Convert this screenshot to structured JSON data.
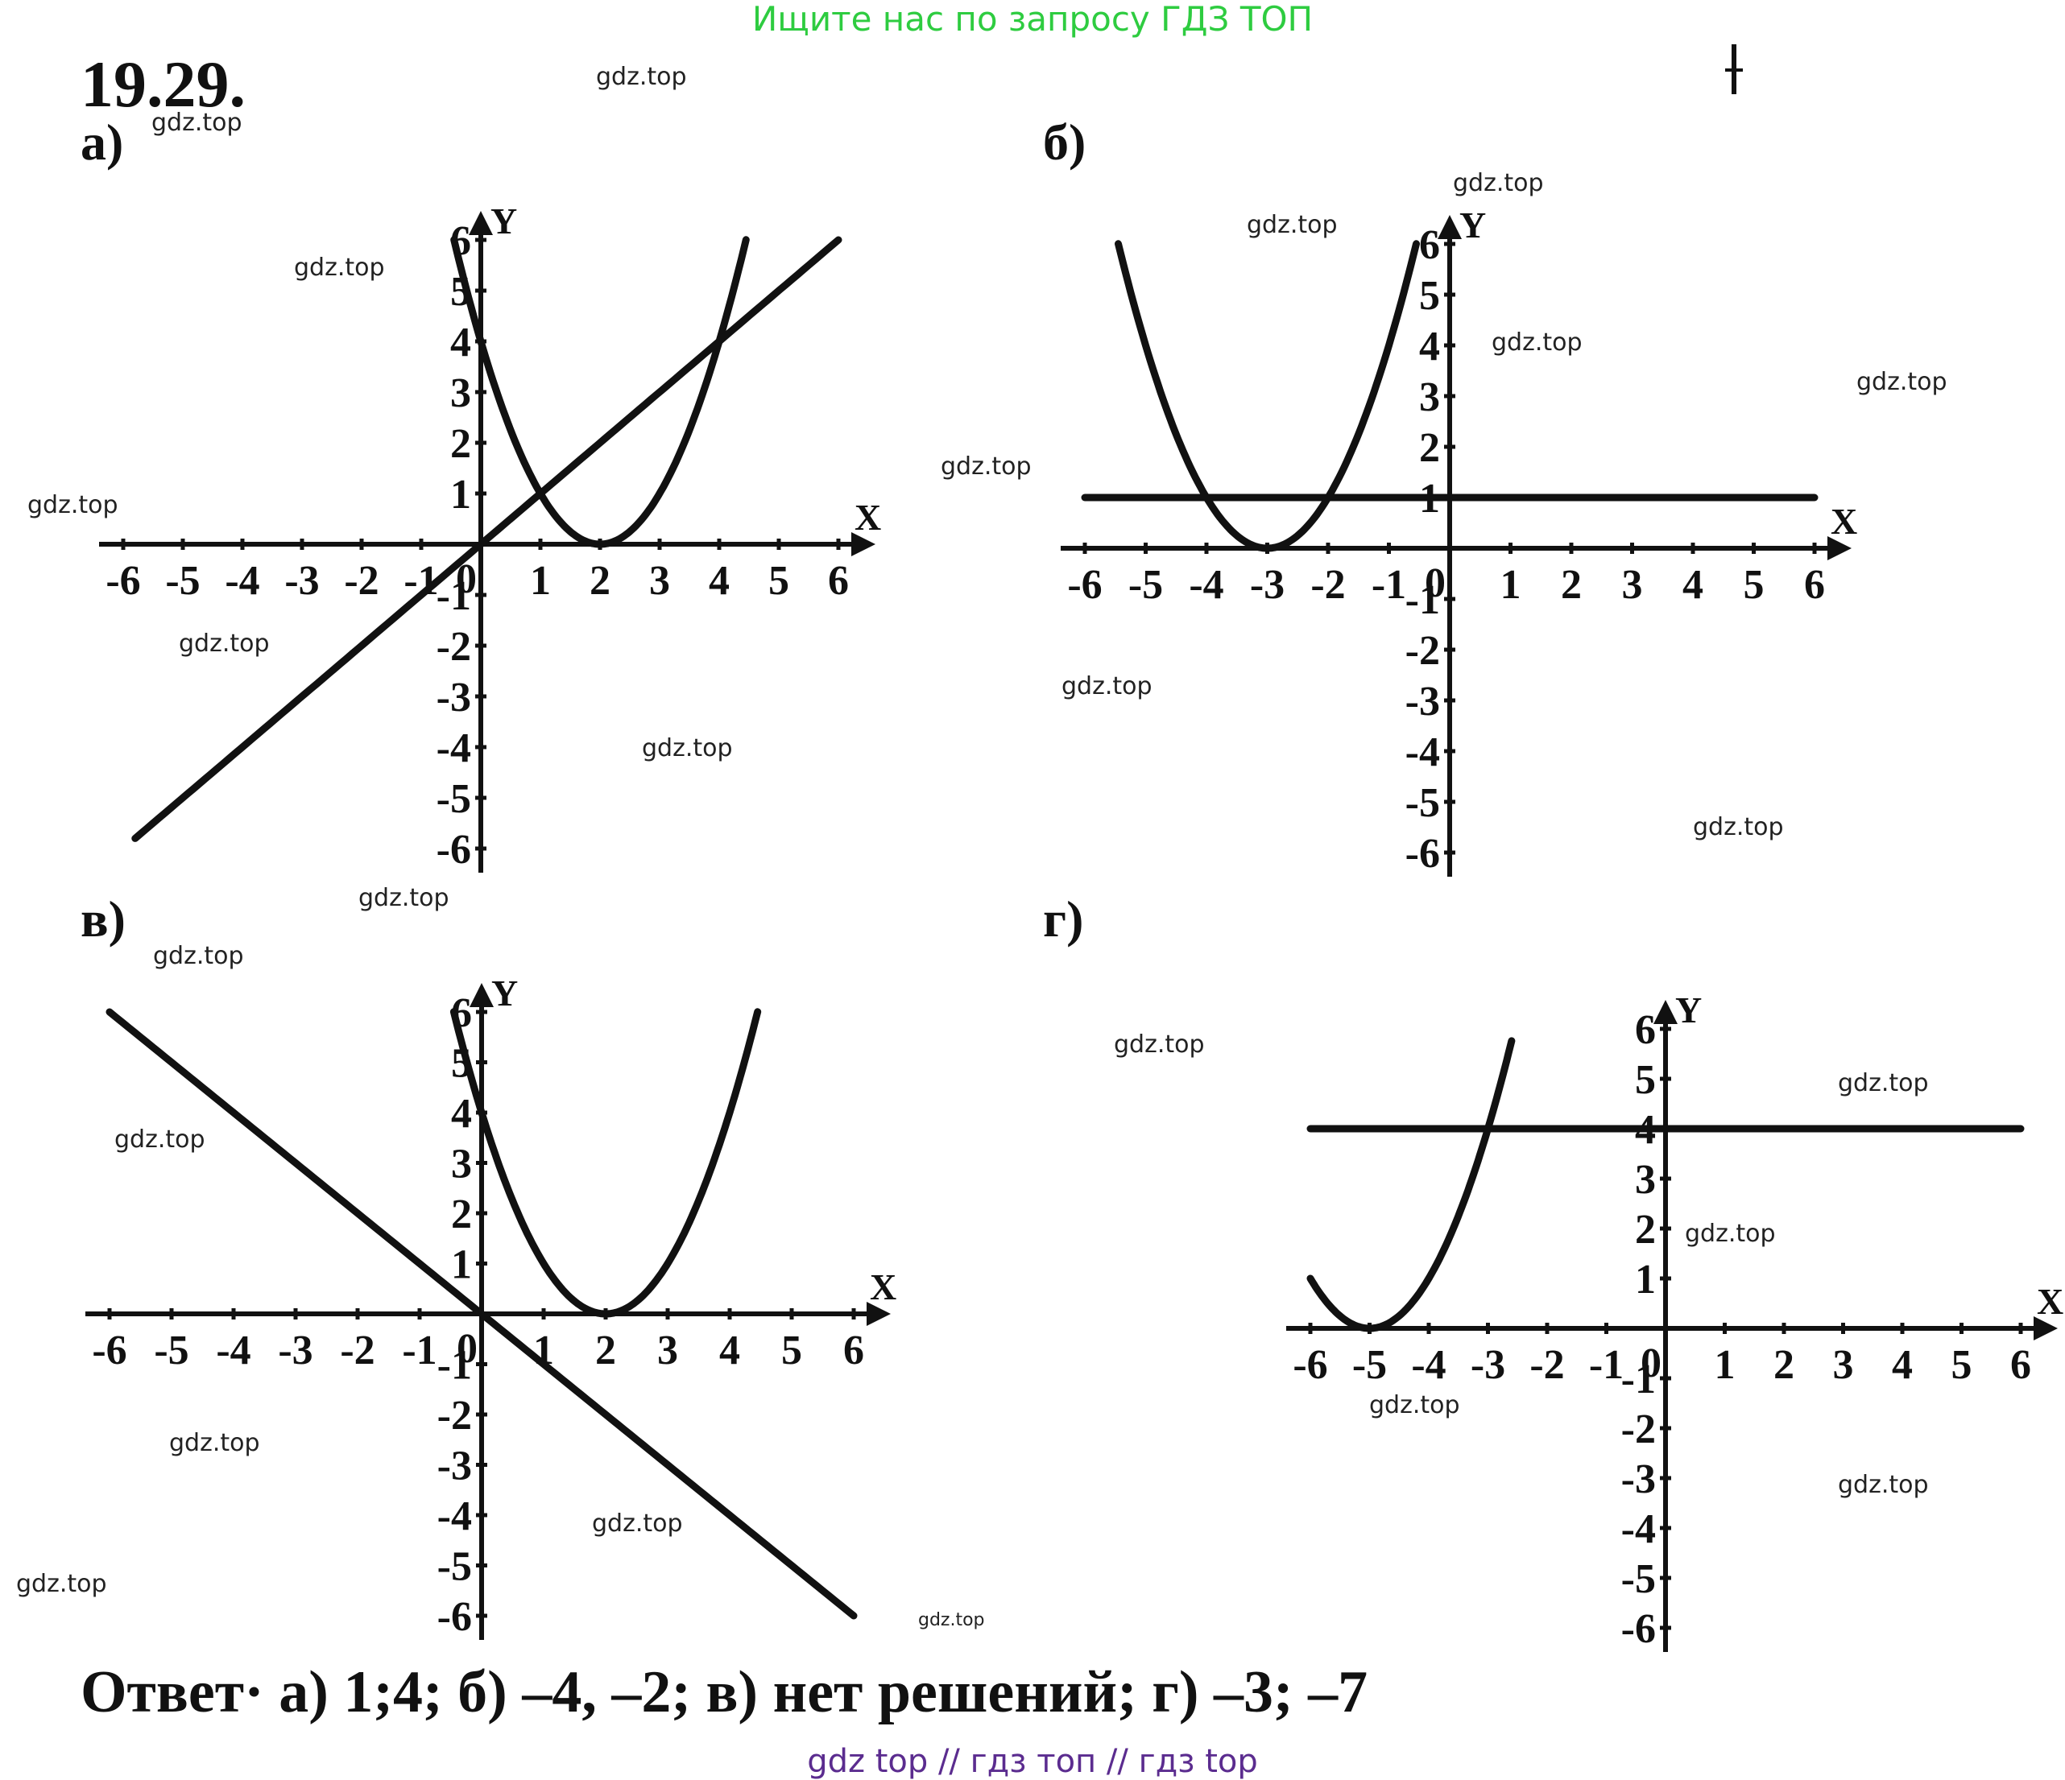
{
  "banner": "Ищите нас по запросу ГДЗ ТОП",
  "problem_number": "19.29.",
  "labels": {
    "a": "а)",
    "b": "б)",
    "v": "в)",
    "g": "г)"
  },
  "axis": {
    "x_label": "X",
    "y_label": "Y",
    "origin": "0"
  },
  "watermarks": [
    "gdz.top",
    "gdz.top",
    "gdz.top",
    "gdz.top",
    "gdz.top",
    "gdz.top",
    "gdz.top",
    "gdz.top",
    "gdz.top",
    "gdz.top",
    "gdz.top",
    "gdz.top",
    "gdz.top",
    "gdz.top",
    "gdz.top",
    "gdz.top",
    "gdz.top",
    "gdz.top",
    "gdz.top",
    "gdz.top",
    "gdz.top",
    "gdz.top",
    "gdz.top",
    "gdz.top",
    "gdz.top"
  ],
  "answer": "Ответ· а) 1;4; б) –4, –2; в) нет решений; г) –3; –7",
  "footer": "gdz top  //  гдз топ  //  гдз top",
  "chart_data": [
    {
      "type": "line",
      "title": "а)",
      "xlabel": "X",
      "ylabel": "Y",
      "xlim": [
        -6,
        6
      ],
      "ylim": [
        -6,
        6
      ],
      "series": [
        {
          "name": "parabola",
          "formula": "y=(x-2)^2",
          "x_range": [
            -0.45,
            4.45
          ]
        },
        {
          "name": "line",
          "formula": "y=x",
          "x_range": [
            -5.8,
            6
          ]
        }
      ]
    },
    {
      "type": "line",
      "title": "б)",
      "xlabel": "X",
      "ylabel": "Y",
      "xlim": [
        -6,
        6
      ],
      "ylim": [
        -6,
        6
      ],
      "series": [
        {
          "name": "parabola",
          "formula": "y=(x+3)^2",
          "x_range": [
            -5.45,
            -0.55
          ]
        },
        {
          "name": "line",
          "formula": "y=1",
          "x_range": [
            -6,
            6
          ]
        }
      ]
    },
    {
      "type": "line",
      "title": "в)",
      "xlabel": "X",
      "ylabel": "Y",
      "xlim": [
        -6,
        6
      ],
      "ylim": [
        -6,
        6
      ],
      "series": [
        {
          "name": "parabola",
          "formula": "y=(x-2)^2",
          "x_range": [
            -0.45,
            4.45
          ]
        },
        {
          "name": "line",
          "formula": "y=-x",
          "x_range": [
            -6,
            6
          ]
        }
      ]
    },
    {
      "type": "line",
      "title": "г)",
      "xlabel": "X",
      "ylabel": "Y",
      "xlim": [
        -6,
        6
      ],
      "ylim": [
        -6,
        6
      ],
      "series": [
        {
          "name": "parabola",
          "formula": "y=(x+5)^2",
          "x_range": [
            -6,
            -2.6
          ]
        },
        {
          "name": "line",
          "formula": "y=4",
          "x_range": [
            -6,
            6
          ]
        }
      ]
    }
  ]
}
